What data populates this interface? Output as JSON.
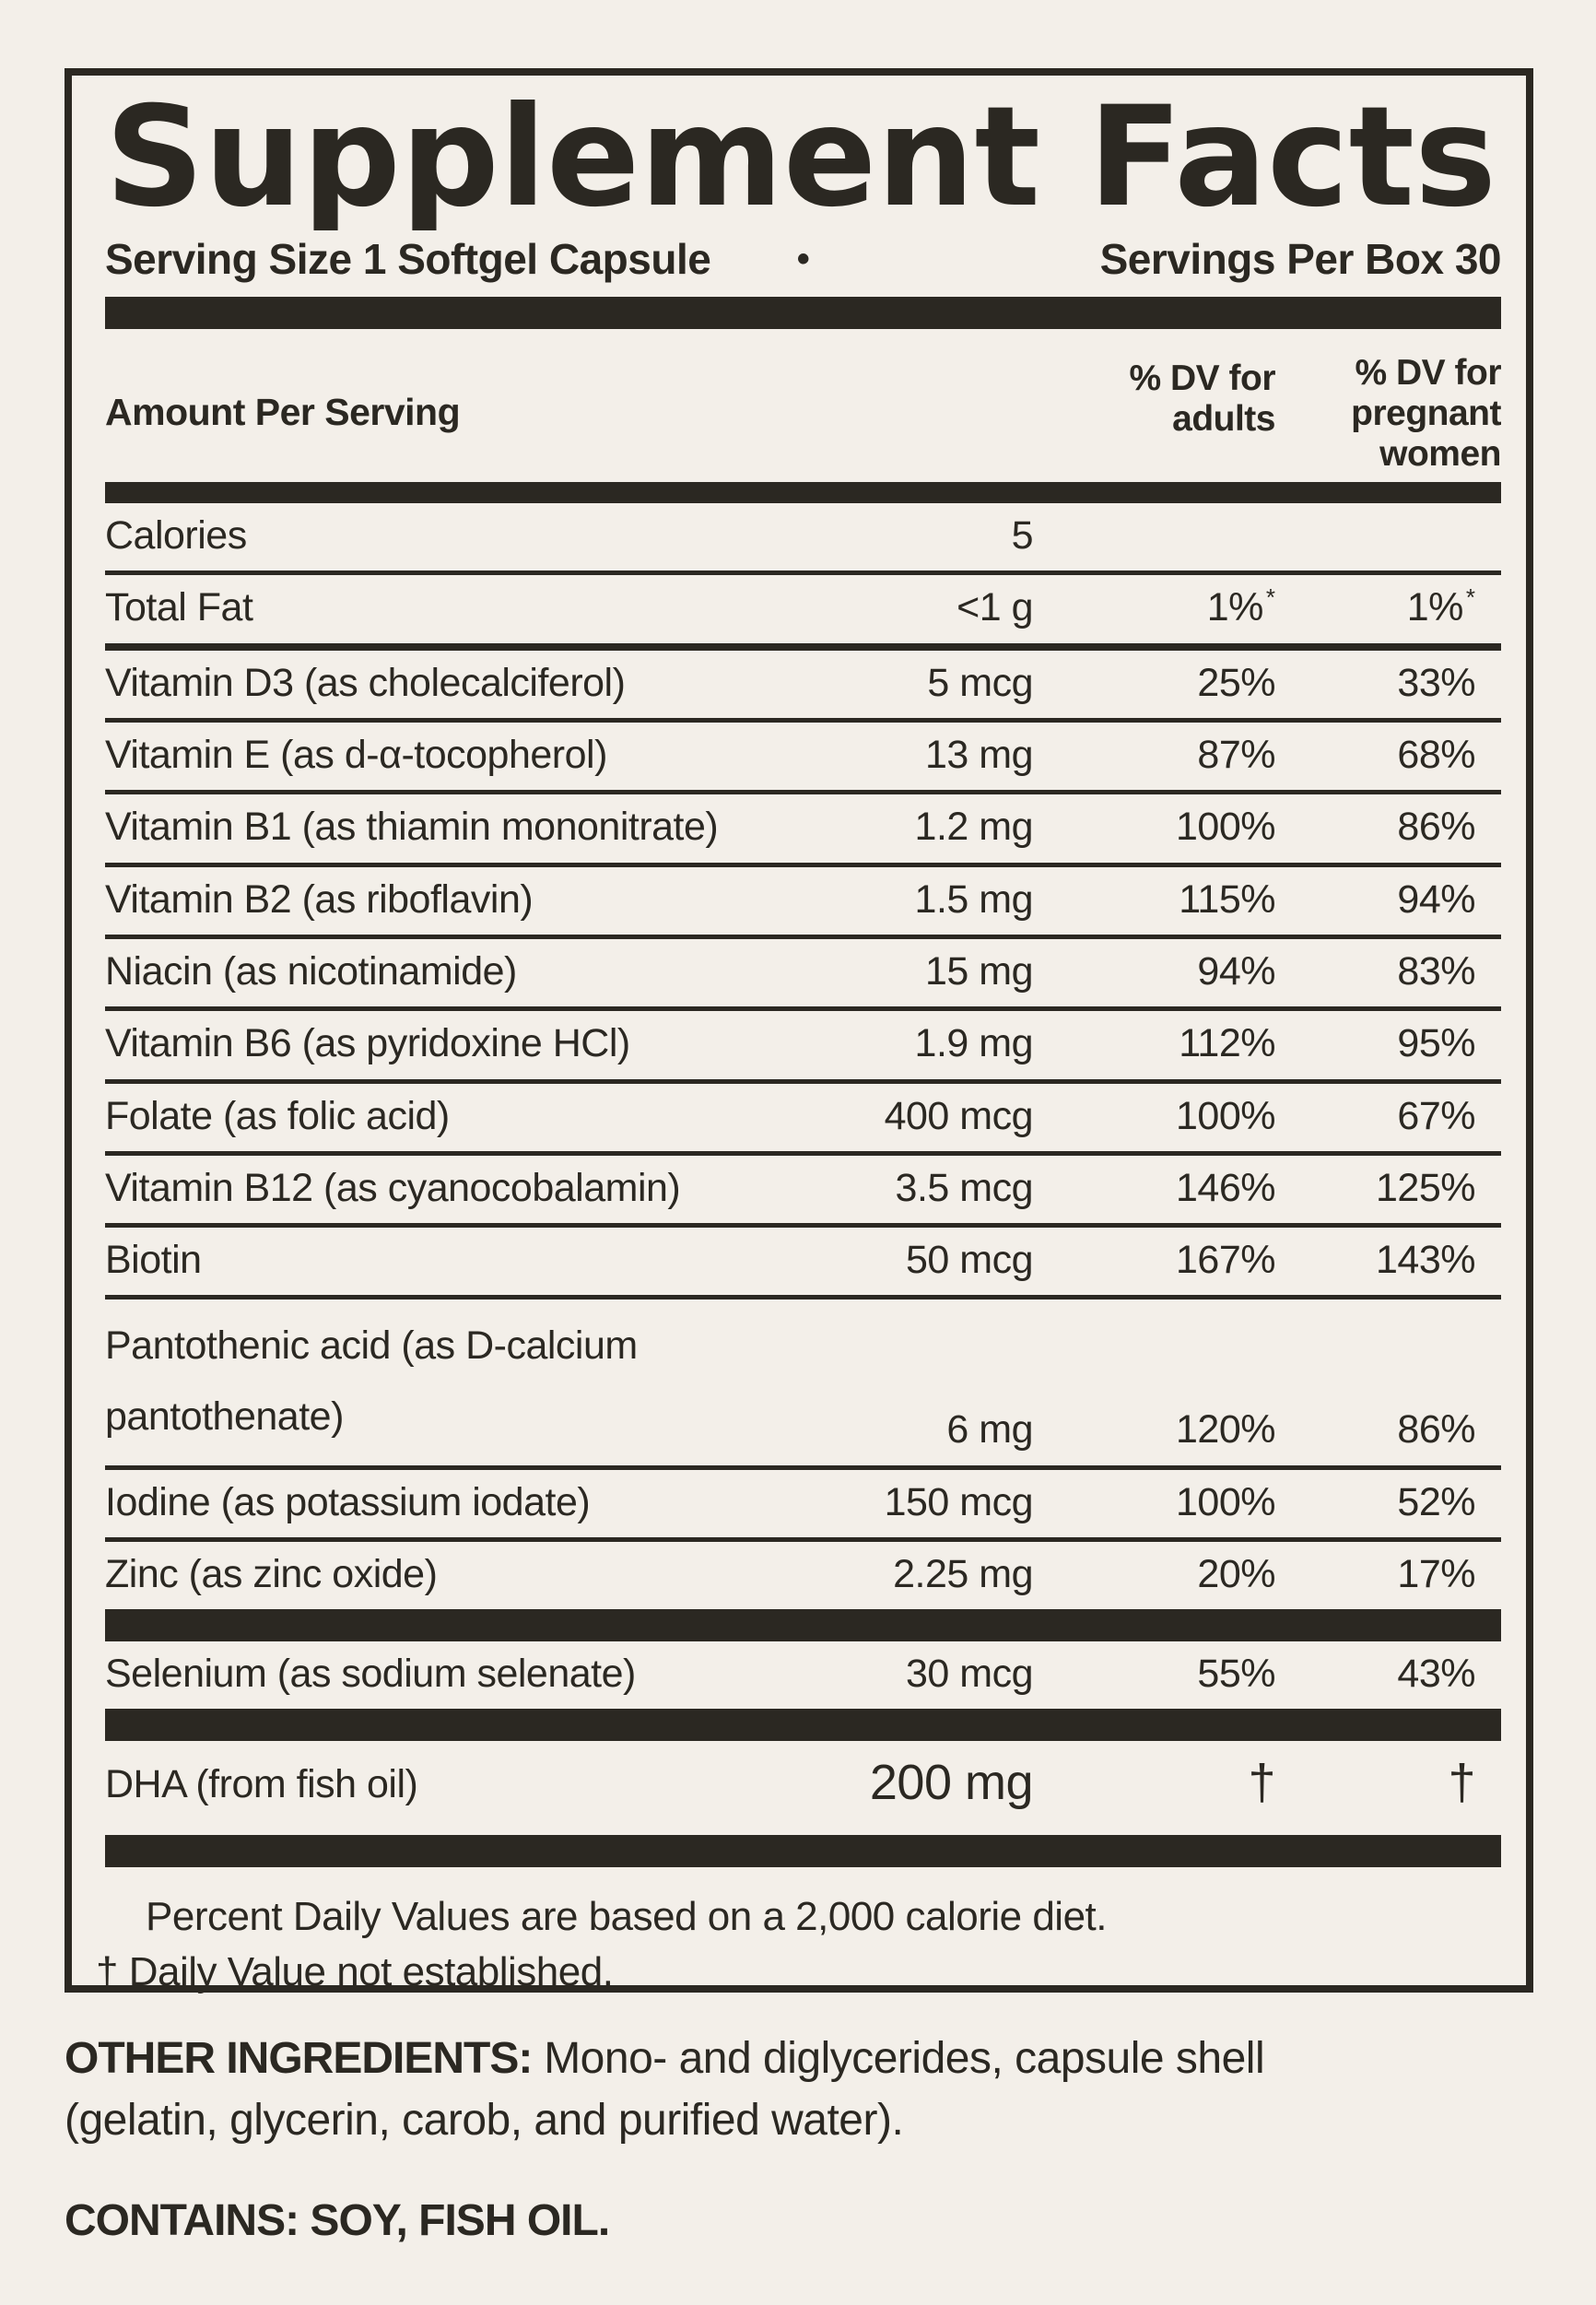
{
  "colors": {
    "background": "#f3efe9",
    "ink": "#2b2822"
  },
  "header": {
    "title": "Supplement Facts",
    "serving_size": "Serving Size 1 Softgel Capsule",
    "bullet": "•",
    "servings_per_box": "Servings Per Box 30"
  },
  "table": {
    "amount_header": "Amount Per Serving",
    "adults_header": "% DV for\nadults",
    "pregnant_header": "% DV for\npregnant\nwomen",
    "rows": [
      {
        "name": "Calories",
        "amount": "5",
        "adults": "",
        "pregnant": "",
        "sep": "thin"
      },
      {
        "name": "Total Fat",
        "amount": "<1 g",
        "adults": "1%",
        "adults_sup": "*",
        "pregnant": "1%",
        "pregnant_sup": "*",
        "sep": "mid"
      },
      {
        "name": "Vitamin D3 (as cholecalciferol)",
        "amount": "5 mcg",
        "adults": "25%",
        "pregnant": "33%",
        "sep": "thin"
      },
      {
        "name": "Vitamin E (as d-α-tocopherol)",
        "amount": "13 mg",
        "adults": "87%",
        "pregnant": "68%",
        "sep": "thin"
      },
      {
        "name": "Vitamin B1 (as thiamin mononitrate)",
        "amount": "1.2 mg",
        "adults": "100%",
        "pregnant": "86%",
        "sep": "thin"
      },
      {
        "name": "Vitamin B2 (as riboflavin)",
        "amount": "1.5 mg",
        "adults": "115%",
        "pregnant": "94%",
        "sep": "thin"
      },
      {
        "name": "Niacin (as nicotinamide)",
        "amount": "15 mg",
        "adults": "94%",
        "pregnant": "83%",
        "sep": "thin"
      },
      {
        "name": "Vitamin B6 (as pyridoxine HCl)",
        "amount": "1.9 mg",
        "adults": "112%",
        "pregnant": "95%",
        "sep": "thin"
      },
      {
        "name": "Folate (as folic acid)",
        "amount": "400 mcg",
        "adults": "100%",
        "pregnant": "67%",
        "sep": "thin"
      },
      {
        "name": "Vitamin B12 (as cyanocobalamin)",
        "amount": "3.5 mcg",
        "adults": "146%",
        "pregnant": "125%",
        "sep": "thin"
      },
      {
        "name": "Biotin",
        "amount": "50 mcg",
        "adults": "167%",
        "pregnant": "143%",
        "sep": "thin"
      },
      {
        "name": "Pantothenic acid (as D-calcium\npantothenate)",
        "amount": "6 mg",
        "adults": "120%",
        "pregnant": "86%",
        "sep": "thin",
        "two_line": true
      },
      {
        "name": "Iodine (as potassium iodate)",
        "amount": "150 mcg",
        "adults": "100%",
        "pregnant": "52%",
        "sep": "thin"
      },
      {
        "name": "Zinc (as zinc oxide)",
        "amount": "2.25 mg",
        "adults": "20%",
        "pregnant": "17%",
        "sep": "bar"
      },
      {
        "name": "Selenium (as sodium selenate)",
        "amount": "30 mcg",
        "adults": "55%",
        "pregnant": "43%",
        "sep": "none",
        "before_bar": true
      },
      {
        "name": "DHA (from fish oil)",
        "amount": "200 mg",
        "adults": "†",
        "pregnant": "†",
        "sep": "bar",
        "dagger": true
      }
    ]
  },
  "footnotes": {
    "line1": "Percent Daily Values are based on a 2,000 calorie diet.",
    "line2": "† Daily Value not established."
  },
  "other_ingredients": {
    "label": "OTHER INGREDIENTS:",
    "text": " Mono- and diglycerides, capsule shell (gelatin, glycerin, carob, and purified water)."
  },
  "contains": {
    "label": "CONTAINS:",
    "text": " SOY, FISH OIL."
  }
}
